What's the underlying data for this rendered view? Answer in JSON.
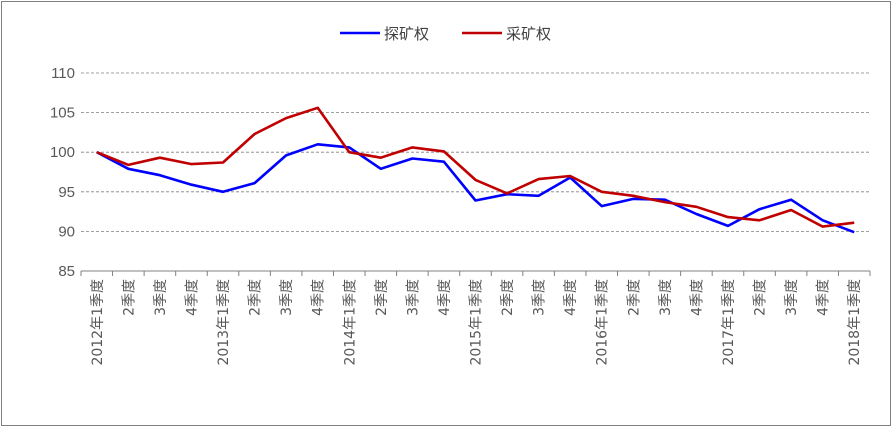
{
  "chart_data": {
    "type": "line",
    "title": "",
    "xlabel": "",
    "ylabel": "",
    "ylim": [
      85,
      110
    ],
    "yticks": [
      85,
      90,
      95,
      100,
      105,
      110
    ],
    "grid": "horizontal-dashed",
    "legend_position": "top-center",
    "categories": [
      "2012年1季度",
      "2季度",
      "3季度",
      "4季度",
      "2013年1季度",
      "2季度",
      "3季度",
      "4季度",
      "2014年1季度",
      "2季度",
      "3季度",
      "4季度",
      "2015年1季度",
      "2季度",
      "3季度",
      "4季度",
      "2016年1季度",
      "2季度",
      "3季度",
      "4季度",
      "2017年1季度",
      "2季度",
      "3季度",
      "4季度",
      "2018年1季度"
    ],
    "series": [
      {
        "name": "探矿权",
        "color": "#0000FF",
        "values": [
          100,
          97.9,
          97.1,
          95.9,
          95.0,
          96.1,
          99.6,
          101.0,
          100.6,
          97.9,
          99.2,
          98.8,
          93.9,
          94.7,
          94.5,
          96.8,
          93.2,
          94.1,
          94.0,
          92.2,
          90.7,
          92.8,
          94.0,
          91.4,
          89.9
        ]
      },
      {
        "name": "采矿权",
        "color": "#C00000",
        "values": [
          100,
          98.4,
          99.3,
          98.5,
          98.7,
          102.3,
          104.3,
          105.6,
          100.0,
          99.3,
          100.6,
          100.1,
          96.5,
          94.8,
          96.6,
          97.0,
          95.0,
          94.5,
          93.7,
          93.1,
          91.8,
          91.4,
          92.7,
          90.6,
          91.1
        ]
      }
    ]
  }
}
